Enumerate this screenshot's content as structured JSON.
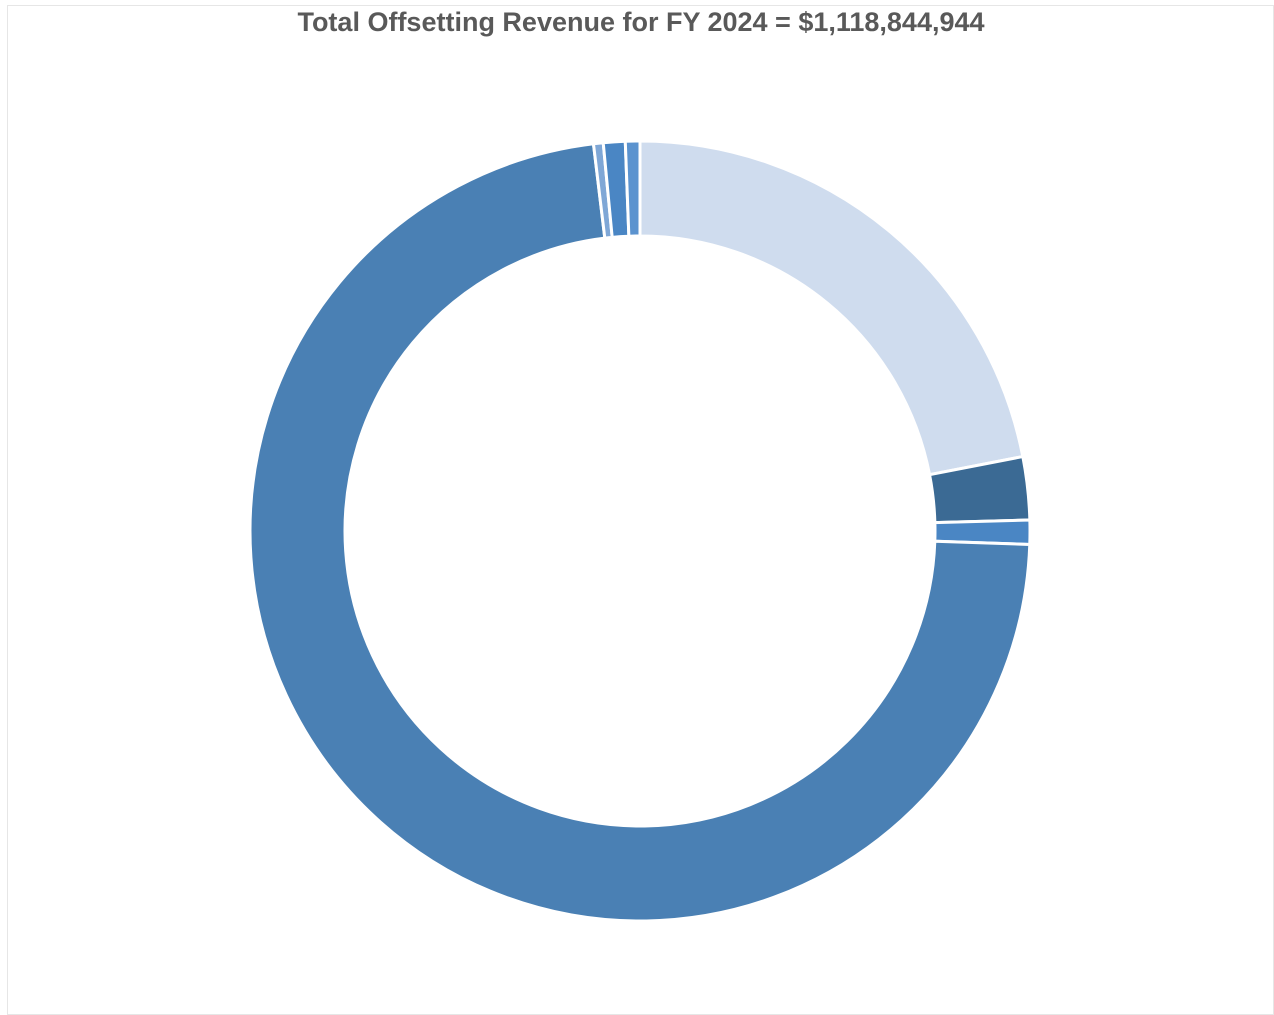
{
  "chart_data": {
    "type": "donut",
    "title": "Total Offsetting Revenue for FY 2024 = $1,118,844,944",
    "values": [
      21.9,
      2.6,
      1.0,
      72.4,
      0.4,
      0.9,
      0.6
    ],
    "colors": [
      "#cfdcee",
      "#3b6a94",
      "#4a86c4",
      "#4a80b4",
      "#7fa7d6",
      "#4a86c4",
      "#5b93cf"
    ]
  }
}
